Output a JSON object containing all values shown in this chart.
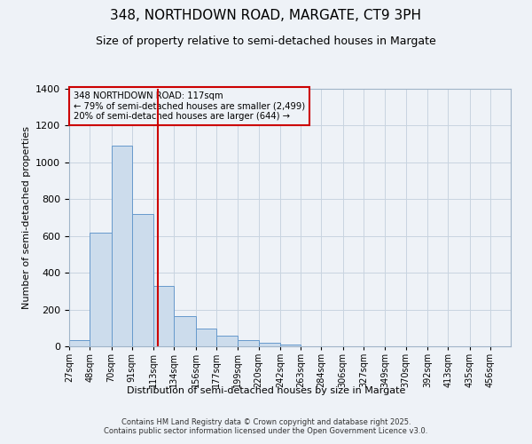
{
  "title": "348, NORTHDOWN ROAD, MARGATE, CT9 3PH",
  "subtitle": "Size of property relative to semi-detached houses in Margate",
  "xlabel": "Distribution of semi-detached houses by size in Margate",
  "ylabel": "Number of semi-detached properties",
  "bin_labels": [
    "27sqm",
    "48sqm",
    "70sqm",
    "91sqm",
    "113sqm",
    "134sqm",
    "156sqm",
    "177sqm",
    "199sqm",
    "220sqm",
    "242sqm",
    "263sqm",
    "284sqm",
    "306sqm",
    "327sqm",
    "349sqm",
    "370sqm",
    "392sqm",
    "413sqm",
    "435sqm",
    "456sqm"
  ],
  "bin_edges": [
    27,
    48,
    70,
    91,
    113,
    134,
    156,
    177,
    199,
    220,
    242,
    263,
    284,
    306,
    327,
    349,
    370,
    392,
    413,
    435,
    456,
    477
  ],
  "bar_values": [
    35,
    620,
    1090,
    720,
    330,
    165,
    95,
    60,
    35,
    18,
    10,
    0,
    0,
    0,
    0,
    0,
    0,
    0,
    0,
    0,
    0
  ],
  "bar_color": "#ccdcec",
  "bar_edgecolor": "#6699cc",
  "vline_x": 117,
  "vline_color": "#cc0000",
  "annotation_title": "348 NORTHDOWN ROAD: 117sqm",
  "annotation_line1": "← 79% of semi-detached houses are smaller (2,499)",
  "annotation_line2": "20% of semi-detached houses are larger (644) →",
  "annotation_box_edgecolor": "#cc0000",
  "ylim": [
    0,
    1400
  ],
  "yticks": [
    0,
    200,
    400,
    600,
    800,
    1000,
    1200,
    1400
  ],
  "footer_line1": "Contains HM Land Registry data © Crown copyright and database right 2025.",
  "footer_line2": "Contains public sector information licensed under the Open Government Licence v3.0.",
  "background_color": "#eef2f7",
  "grid_color": "#c8d4e0",
  "title_fontsize": 11,
  "subtitle_fontsize": 9
}
